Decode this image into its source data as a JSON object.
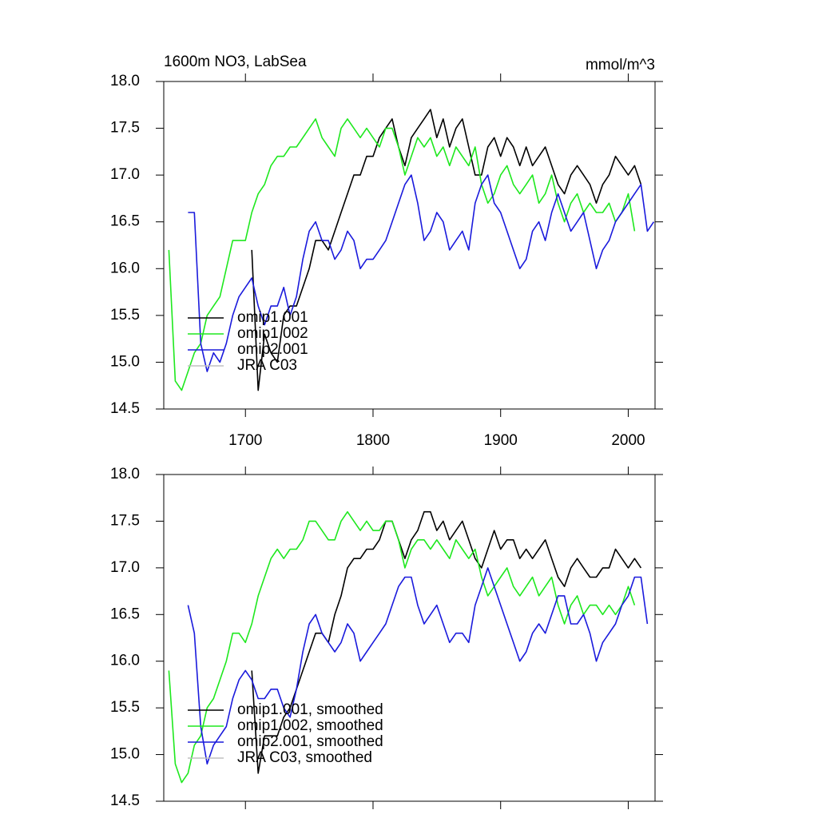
{
  "chart_data": [
    {
      "type": "line",
      "title": "1600m NO3, LabSea",
      "units": "mmol/m^3",
      "legend": "lower left",
      "xlim": [
        1636,
        2021
      ],
      "ylim": [
        14.5,
        18.0
      ],
      "xticks": [
        1700,
        1800,
        1900,
        2000
      ],
      "yticks": [
        {
          "value": 14.5,
          "label": "14.5"
        },
        {
          "value": 15.0,
          "label": "15.0"
        },
        {
          "value": 15.5,
          "label": "15.5"
        },
        {
          "value": 16.0,
          "label": "16.0"
        },
        {
          "value": 16.5,
          "label": "16.5"
        },
        {
          "value": 17.0,
          "label": "17.0"
        },
        {
          "value": 17.5,
          "label": "17.5"
        },
        {
          "value": 18.0,
          "label": "18.0"
        }
      ],
      "x": [
        1640,
        1645,
        1650,
        1655,
        1660,
        1665,
        1670,
        1675,
        1680,
        1685,
        1690,
        1695,
        1700,
        1705,
        1710,
        1715,
        1720,
        1725,
        1730,
        1735,
        1740,
        1745,
        1750,
        1755,
        1760,
        1765,
        1770,
        1775,
        1780,
        1785,
        1790,
        1795,
        1800,
        1805,
        1810,
        1815,
        1820,
        1825,
        1830,
        1835,
        1840,
        1845,
        1850,
        1855,
        1860,
        1865,
        1870,
        1875,
        1880,
        1885,
        1890,
        1895,
        1900,
        1905,
        1910,
        1915,
        1920,
        1925,
        1930,
        1935,
        1940,
        1945,
        1950,
        1955,
        1960,
        1965,
        1970,
        1975,
        1980,
        1985,
        1990,
        1995,
        2000,
        2005,
        2010,
        2015,
        2020
      ],
      "series": [
        {
          "name": "omip1.001",
          "color": "#000000",
          "values": [
            null,
            null,
            null,
            null,
            null,
            null,
            null,
            null,
            null,
            null,
            null,
            null,
            null,
            16.2,
            14.7,
            15.3,
            15.1,
            15.0,
            15.5,
            15.6,
            15.6,
            15.8,
            16.0,
            16.3,
            16.3,
            16.2,
            16.4,
            16.6,
            16.8,
            17.0,
            17.0,
            17.2,
            17.2,
            17.4,
            17.5,
            17.6,
            17.3,
            17.1,
            17.4,
            17.5,
            17.6,
            17.7,
            17.4,
            17.6,
            17.3,
            17.5,
            17.6,
            17.3,
            17.0,
            17.0,
            17.3,
            17.4,
            17.2,
            17.4,
            17.3,
            17.1,
            17.3,
            17.1,
            17.2,
            17.3,
            17.1,
            16.9,
            16.8,
            17.0,
            17.1,
            17.0,
            16.9,
            16.7,
            16.9,
            17.0,
            17.2,
            17.1,
            17.0,
            17.1,
            16.9,
            null,
            null
          ]
        },
        {
          "name": "omip1.002",
          "color": "#1ee81e",
          "values": [
            16.2,
            14.8,
            14.7,
            14.9,
            15.1,
            15.2,
            15.5,
            15.6,
            15.7,
            16.0,
            16.3,
            16.3,
            16.3,
            16.6,
            16.8,
            16.9,
            17.1,
            17.2,
            17.2,
            17.3,
            17.3,
            17.4,
            17.5,
            17.6,
            17.4,
            17.3,
            17.2,
            17.5,
            17.6,
            17.5,
            17.4,
            17.5,
            17.4,
            17.3,
            17.5,
            17.5,
            17.3,
            17.0,
            17.2,
            17.4,
            17.3,
            17.4,
            17.2,
            17.3,
            17.1,
            17.3,
            17.2,
            17.1,
            17.3,
            16.9,
            16.7,
            16.8,
            17.0,
            17.1,
            16.9,
            16.8,
            16.9,
            17.0,
            16.7,
            16.8,
            17.0,
            16.7,
            16.5,
            16.7,
            16.8,
            16.6,
            16.7,
            16.6,
            16.6,
            16.7,
            16.5,
            16.6,
            16.8,
            16.4,
            null,
            null,
            null
          ]
        },
        {
          "name": "omip2.001",
          "color": "#1a1adc",
          "values": [
            null,
            null,
            null,
            16.6,
            16.6,
            15.2,
            14.9,
            15.1,
            15.0,
            15.2,
            15.5,
            15.7,
            15.8,
            15.9,
            15.6,
            15.4,
            15.6,
            15.6,
            15.8,
            15.5,
            15.7,
            16.1,
            16.4,
            16.5,
            16.3,
            16.3,
            16.1,
            16.2,
            16.4,
            16.3,
            16.0,
            16.1,
            16.1,
            16.2,
            16.3,
            16.5,
            16.7,
            16.9,
            17.0,
            16.7,
            16.3,
            16.4,
            16.6,
            16.5,
            16.2,
            16.3,
            16.4,
            16.2,
            16.7,
            16.9,
            17.0,
            16.7,
            16.6,
            16.4,
            16.2,
            16.0,
            16.1,
            16.4,
            16.5,
            16.3,
            16.6,
            16.8,
            16.6,
            16.4,
            16.5,
            16.6,
            16.3,
            16.0,
            16.2,
            16.3,
            16.5,
            16.6,
            16.7,
            16.8,
            16.9,
            16.4,
            16.5
          ]
        },
        {
          "name": "JRA C03",
          "color": "#c0c0c0",
          "values": [
            null,
            null,
            null,
            null,
            null,
            null,
            null,
            null,
            null,
            null,
            null,
            null,
            null,
            null,
            null,
            null,
            null,
            null,
            null,
            null,
            null,
            null,
            null,
            null,
            null,
            null,
            null,
            null,
            null,
            null,
            null,
            null,
            null,
            null,
            null,
            null,
            null,
            null,
            null,
            null,
            null,
            null,
            null,
            null,
            null,
            null,
            null,
            null,
            null,
            null,
            null,
            null,
            null,
            null,
            null,
            null,
            null,
            null,
            null,
            null,
            null,
            null,
            null,
            null,
            null,
            null,
            null,
            null,
            null,
            null,
            null,
            null,
            null,
            null,
            null,
            null,
            null
          ]
        }
      ]
    },
    {
      "type": "line",
      "legend": "lower left",
      "xlim": [
        1636,
        2021
      ],
      "ylim": [
        14.5,
        18.0
      ],
      "xticks": [
        1700,
        1800,
        1900,
        2000
      ],
      "yticks": [
        {
          "value": 14.5,
          "label": "14.5"
        },
        {
          "value": 15.0,
          "label": "15.0"
        },
        {
          "value": 15.5,
          "label": "15.5"
        },
        {
          "value": 16.0,
          "label": "16.0"
        },
        {
          "value": 16.5,
          "label": "16.5"
        },
        {
          "value": 17.0,
          "label": "17.0"
        },
        {
          "value": 17.5,
          "label": "17.5"
        },
        {
          "value": 18.0,
          "label": "18.0"
        }
      ],
      "x": [
        1640,
        1645,
        1650,
        1655,
        1660,
        1665,
        1670,
        1675,
        1680,
        1685,
        1690,
        1695,
        1700,
        1705,
        1710,
        1715,
        1720,
        1725,
        1730,
        1735,
        1740,
        1745,
        1750,
        1755,
        1760,
        1765,
        1770,
        1775,
        1780,
        1785,
        1790,
        1795,
        1800,
        1805,
        1810,
        1815,
        1820,
        1825,
        1830,
        1835,
        1840,
        1845,
        1850,
        1855,
        1860,
        1865,
        1870,
        1875,
        1880,
        1885,
        1890,
        1895,
        1900,
        1905,
        1910,
        1915,
        1920,
        1925,
        1930,
        1935,
        1940,
        1945,
        1950,
        1955,
        1960,
        1965,
        1970,
        1975,
        1980,
        1985,
        1990,
        1995,
        2000,
        2005,
        2010,
        2015,
        2020
      ],
      "series": [
        {
          "name": "omip1.001, smoothed",
          "color": "#000000",
          "values": [
            null,
            null,
            null,
            null,
            null,
            null,
            null,
            null,
            null,
            null,
            null,
            null,
            null,
            15.9,
            14.8,
            15.2,
            15.2,
            15.2,
            15.4,
            15.5,
            15.7,
            15.9,
            16.1,
            16.3,
            16.3,
            16.2,
            16.5,
            16.7,
            17.0,
            17.1,
            17.1,
            17.2,
            17.2,
            17.3,
            17.5,
            17.5,
            17.3,
            17.1,
            17.3,
            17.4,
            17.6,
            17.6,
            17.4,
            17.5,
            17.3,
            17.4,
            17.5,
            17.3,
            17.1,
            17.0,
            17.2,
            17.4,
            17.2,
            17.3,
            17.3,
            17.1,
            17.2,
            17.1,
            17.2,
            17.3,
            17.1,
            16.9,
            16.8,
            17.0,
            17.1,
            17.0,
            16.9,
            16.9,
            17.0,
            17.0,
            17.2,
            17.1,
            17.0,
            17.1,
            17.0,
            null,
            null
          ]
        },
        {
          "name": "omip1.002, smoothed",
          "color": "#1ee81e",
          "values": [
            15.9,
            14.9,
            14.7,
            14.8,
            15.1,
            15.2,
            15.5,
            15.6,
            15.8,
            16.0,
            16.3,
            16.3,
            16.2,
            16.4,
            16.7,
            16.9,
            17.1,
            17.2,
            17.1,
            17.2,
            17.2,
            17.3,
            17.5,
            17.5,
            17.4,
            17.3,
            17.3,
            17.5,
            17.6,
            17.5,
            17.4,
            17.5,
            17.4,
            17.4,
            17.5,
            17.5,
            17.3,
            17.0,
            17.2,
            17.3,
            17.3,
            17.2,
            17.3,
            17.2,
            17.1,
            17.3,
            17.2,
            17.1,
            17.2,
            16.9,
            16.7,
            16.8,
            16.9,
            17.0,
            16.8,
            16.7,
            16.8,
            16.9,
            16.7,
            16.8,
            16.9,
            16.6,
            16.4,
            16.6,
            16.7,
            16.5,
            16.6,
            16.6,
            16.5,
            16.6,
            16.5,
            16.6,
            16.8,
            16.6,
            null,
            null,
            null
          ]
        },
        {
          "name": "omip2.001, smoothed",
          "color": "#1a1adc",
          "values": [
            null,
            null,
            null,
            16.6,
            16.3,
            15.3,
            14.9,
            15.1,
            15.2,
            15.3,
            15.6,
            15.8,
            15.9,
            15.8,
            15.6,
            15.6,
            15.7,
            15.7,
            15.5,
            15.4,
            15.7,
            16.1,
            16.4,
            16.5,
            16.3,
            16.2,
            16.1,
            16.2,
            16.4,
            16.3,
            16.0,
            16.1,
            16.2,
            16.3,
            16.4,
            16.6,
            16.8,
            16.9,
            16.9,
            16.6,
            16.4,
            16.5,
            16.6,
            16.4,
            16.2,
            16.3,
            16.3,
            16.2,
            16.6,
            16.8,
            17.0,
            16.8,
            16.6,
            16.4,
            16.2,
            16.0,
            16.1,
            16.3,
            16.4,
            16.3,
            16.5,
            16.7,
            16.7,
            16.4,
            16.4,
            16.5,
            16.3,
            16.0,
            16.2,
            16.3,
            16.4,
            16.6,
            16.7,
            16.9,
            16.9,
            16.4,
            null
          ]
        },
        {
          "name": "JRA C03, smoothed",
          "color": "#c0c0c0",
          "values": [
            null,
            null,
            null,
            null,
            null,
            null,
            null,
            null,
            null,
            null,
            null,
            null,
            null,
            null,
            null,
            null,
            null,
            null,
            null,
            null,
            null,
            null,
            null,
            null,
            null,
            null,
            null,
            null,
            null,
            null,
            null,
            null,
            null,
            null,
            null,
            null,
            null,
            null,
            null,
            null,
            null,
            null,
            null,
            null,
            null,
            null,
            null,
            null,
            null,
            null,
            null,
            null,
            null,
            null,
            null,
            null,
            null,
            null,
            null,
            null,
            null,
            null,
            null,
            null,
            null,
            null,
            null,
            null,
            null,
            null,
            null,
            null,
            null,
            null,
            null,
            null,
            null
          ]
        }
      ]
    }
  ]
}
